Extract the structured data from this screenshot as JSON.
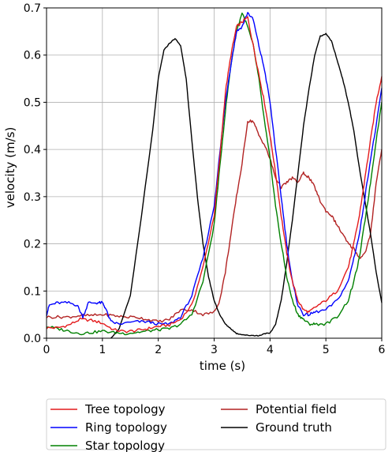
{
  "chart_data": {
    "type": "line",
    "xlabel": "time (s)",
    "ylabel": "velocity (m/s)",
    "xlim": [
      0,
      6
    ],
    "ylim": [
      0,
      0.7
    ],
    "x_ticks": [
      "0",
      "1",
      "2",
      "3",
      "4",
      "5",
      "6"
    ],
    "y_ticks": [
      "0.0",
      "0.1",
      "0.2",
      "0.3",
      "0.4",
      "0.5",
      "0.6",
      "0.7"
    ],
    "grid": true,
    "legend_position": "bottom-center, below the axes",
    "series": [
      {
        "name": "Tree topology",
        "color": "#e41a1c",
        "x": [
          0,
          0.2,
          0.4,
          0.6,
          0.8,
          1.0,
          1.2,
          1.4,
          1.6,
          1.8,
          2.0,
          2.2,
          2.4,
          2.6,
          2.8,
          3.0,
          3.1,
          3.2,
          3.3,
          3.4,
          3.5,
          3.6,
          3.7,
          3.8,
          3.9,
          4.0,
          4.1,
          4.2,
          4.3,
          4.4,
          4.5,
          4.6,
          4.7,
          4.8,
          5.0,
          5.2,
          5.4,
          5.5,
          5.6,
          5.7,
          5.8,
          5.9,
          6.0
        ],
        "y": [
          0.022,
          0.022,
          0.028,
          0.04,
          0.038,
          0.032,
          0.018,
          0.014,
          0.016,
          0.02,
          0.025,
          0.028,
          0.04,
          0.07,
          0.15,
          0.26,
          0.38,
          0.52,
          0.6,
          0.66,
          0.67,
          0.68,
          0.62,
          0.56,
          0.5,
          0.43,
          0.35,
          0.26,
          0.18,
          0.12,
          0.08,
          0.06,
          0.055,
          0.065,
          0.08,
          0.1,
          0.15,
          0.2,
          0.26,
          0.34,
          0.42,
          0.5,
          0.555
        ]
      },
      {
        "name": "Ring topology",
        "color": "#0000ff",
        "x": [
          0,
          0.05,
          0.2,
          0.4,
          0.55,
          0.65,
          0.75,
          0.9,
          1.0,
          1.05,
          1.15,
          1.3,
          1.6,
          1.8,
          2.0,
          2.2,
          2.4,
          2.6,
          2.8,
          3.0,
          3.1,
          3.2,
          3.3,
          3.4,
          3.5,
          3.6,
          3.7,
          3.8,
          3.9,
          4.0,
          4.1,
          4.2,
          4.3,
          4.4,
          4.5,
          4.6,
          4.7,
          4.8,
          5.0,
          5.2,
          5.4,
          5.5,
          5.6,
          5.7,
          5.8,
          5.9,
          6.0
        ],
        "y": [
          0.05,
          0.07,
          0.075,
          0.075,
          0.07,
          0.045,
          0.075,
          0.075,
          0.075,
          0.065,
          0.035,
          0.03,
          0.035,
          0.035,
          0.03,
          0.03,
          0.045,
          0.09,
          0.17,
          0.28,
          0.39,
          0.5,
          0.58,
          0.65,
          0.66,
          0.69,
          0.675,
          0.62,
          0.57,
          0.5,
          0.4,
          0.3,
          0.2,
          0.12,
          0.07,
          0.05,
          0.05,
          0.055,
          0.06,
          0.08,
          0.12,
          0.17,
          0.22,
          0.3,
          0.38,
          0.45,
          0.53
        ]
      },
      {
        "name": "Star topology",
        "color": "#008000",
        "x": [
          0,
          0.2,
          0.4,
          0.6,
          0.8,
          1.0,
          1.2,
          1.4,
          1.6,
          1.8,
          2.0,
          2.2,
          2.4,
          2.6,
          2.8,
          3.0,
          3.1,
          3.2,
          3.3,
          3.4,
          3.5,
          3.6,
          3.7,
          3.8,
          3.9,
          4.0,
          4.1,
          4.2,
          4.3,
          4.4,
          4.5,
          4.6,
          4.7,
          4.8,
          5.0,
          5.2,
          5.4,
          5.5,
          5.6,
          5.7,
          5.8,
          5.9,
          6.0
        ],
        "y": [
          0.025,
          0.02,
          0.015,
          0.01,
          0.012,
          0.015,
          0.012,
          0.01,
          0.012,
          0.015,
          0.018,
          0.02,
          0.03,
          0.05,
          0.12,
          0.24,
          0.36,
          0.48,
          0.58,
          0.65,
          0.69,
          0.66,
          0.62,
          0.55,
          0.46,
          0.38,
          0.28,
          0.2,
          0.13,
          0.08,
          0.05,
          0.04,
          0.03,
          0.03,
          0.03,
          0.045,
          0.08,
          0.12,
          0.17,
          0.25,
          0.33,
          0.42,
          0.5
        ]
      },
      {
        "name": "Potential field",
        "color": "#b22222",
        "x": [
          0,
          0.2,
          0.4,
          0.6,
          0.8,
          1.0,
          1.2,
          1.4,
          1.6,
          1.8,
          2.0,
          2.2,
          2.4,
          2.6,
          2.8,
          3.0,
          3.1,
          3.2,
          3.3,
          3.4,
          3.5,
          3.6,
          3.7,
          3.8,
          3.9,
          4.0,
          4.1,
          4.2,
          4.3,
          4.4,
          4.5,
          4.6,
          4.7,
          4.8,
          4.9,
          5.0,
          5.1,
          5.2,
          5.3,
          5.4,
          5.5,
          5.6,
          5.7,
          5.8,
          5.9,
          6.0
        ],
        "y": [
          0.045,
          0.045,
          0.045,
          0.048,
          0.048,
          0.05,
          0.048,
          0.045,
          0.045,
          0.04,
          0.035,
          0.04,
          0.06,
          0.06,
          0.05,
          0.055,
          0.08,
          0.14,
          0.22,
          0.3,
          0.37,
          0.46,
          0.46,
          0.43,
          0.41,
          0.38,
          0.34,
          0.32,
          0.33,
          0.34,
          0.33,
          0.35,
          0.34,
          0.32,
          0.29,
          0.27,
          0.26,
          0.24,
          0.22,
          0.2,
          0.19,
          0.17,
          0.18,
          0.22,
          0.33,
          0.4
        ]
      },
      {
        "name": "Ground truth",
        "color": "#000000",
        "x": [
          1.15,
          1.3,
          1.5,
          1.7,
          1.9,
          2.0,
          2.1,
          2.2,
          2.3,
          2.4,
          2.5,
          2.6,
          2.7,
          2.8,
          2.9,
          3.0,
          3.1,
          3.2,
          3.3,
          3.4,
          3.5,
          3.6,
          3.7,
          3.8,
          3.9,
          4.0,
          4.1,
          4.2,
          4.3,
          4.4,
          4.5,
          4.6,
          4.7,
          4.8,
          4.9,
          5.0,
          5.1,
          5.2,
          5.3,
          5.4,
          5.5,
          5.6,
          5.7,
          5.8,
          5.9,
          6.0
        ],
        "y": [
          0.0,
          0.02,
          0.09,
          0.26,
          0.44,
          0.55,
          0.61,
          0.625,
          0.635,
          0.62,
          0.55,
          0.42,
          0.3,
          0.2,
          0.13,
          0.08,
          0.05,
          0.03,
          0.02,
          0.01,
          0.008,
          0.006,
          0.006,
          0.005,
          0.01,
          0.01,
          0.03,
          0.08,
          0.16,
          0.25,
          0.35,
          0.45,
          0.53,
          0.6,
          0.64,
          0.645,
          0.63,
          0.59,
          0.55,
          0.5,
          0.44,
          0.36,
          0.29,
          0.22,
          0.14,
          0.075
        ]
      }
    ]
  }
}
